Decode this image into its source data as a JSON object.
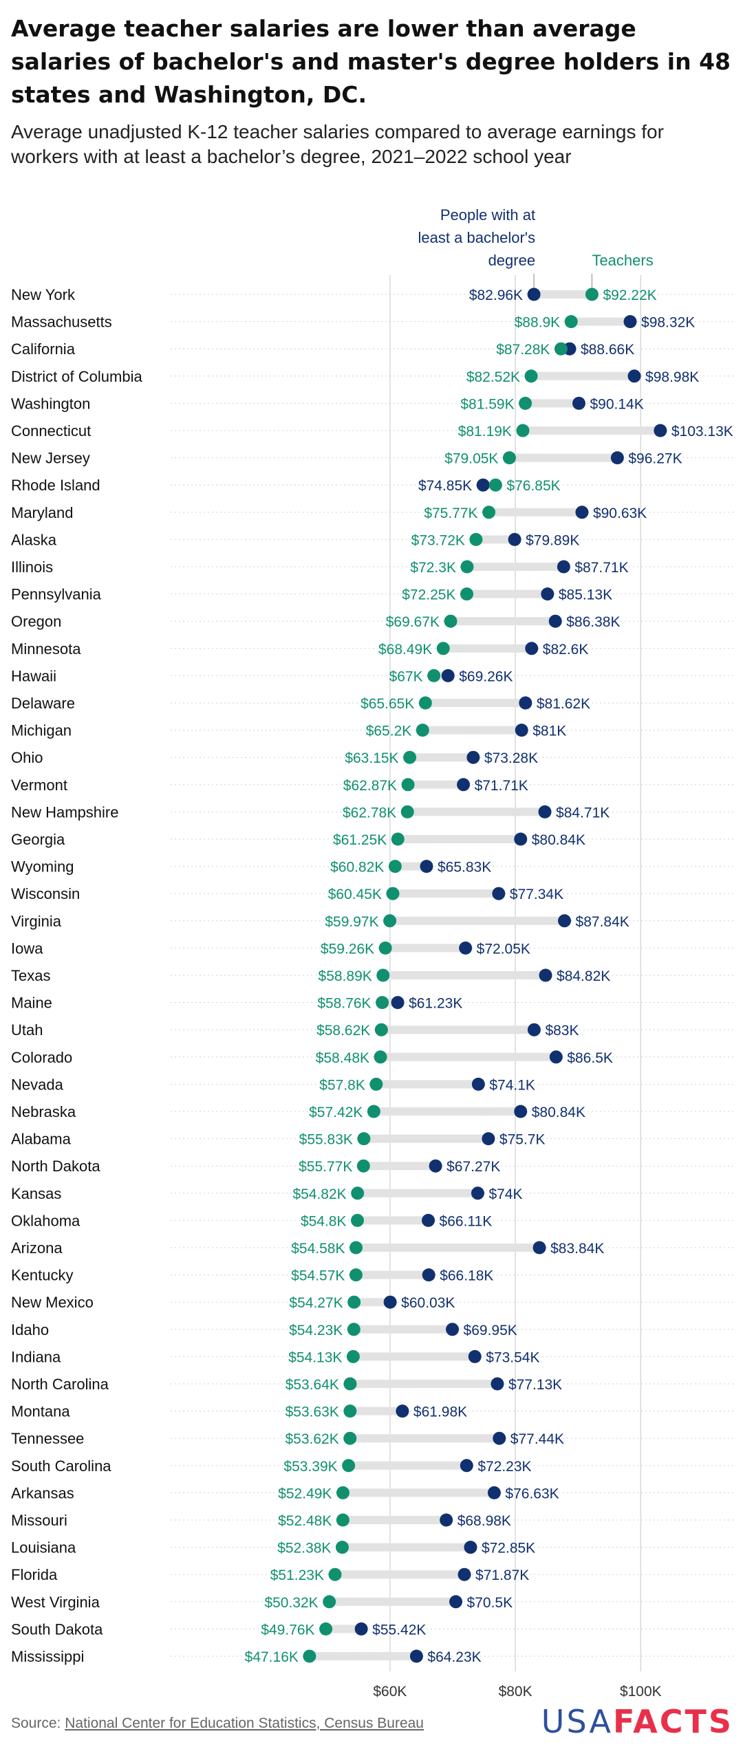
{
  "title": "Average teacher salaries are lower than average salaries of bachelor's and master's degree holders in 48 states and Washington, DC.",
  "subtitle": "Average unadjusted K-12 teacher salaries compared to average earnings for workers with at least a bachelor’s degree, 2021–2022 school year",
  "source": {
    "prefix": "Source: ",
    "link_text": "National Center for Education Statistics, Census Bureau"
  },
  "logo": {
    "usa": "USA",
    "facts": "FACTS"
  },
  "colors": {
    "teachers": "#10906f",
    "bachelors": "#11306f",
    "range": "#e2e2e2",
    "grid": "#d8d8d8"
  },
  "chart_data": {
    "type": "dot",
    "x_unit": "USD",
    "xlim": [
      25000,
      115000
    ],
    "x_ticks": [
      60000,
      80000,
      100000
    ],
    "x_tick_labels": [
      "$60K",
      "$80K",
      "$100K"
    ],
    "series": [
      {
        "name": "People with at least a bachelor's degree",
        "key": "degree"
      },
      {
        "name": "Teachers",
        "key": "teachers"
      }
    ],
    "rows": [
      {
        "state": "New York",
        "teachers": 92220,
        "degree": 82960,
        "teachers_label": "$92.22K",
        "degree_label": "$82.96K"
      },
      {
        "state": "Massachusetts",
        "teachers": 88900,
        "degree": 98320,
        "teachers_label": "$88.9K",
        "degree_label": "$98.32K"
      },
      {
        "state": "California",
        "teachers": 87280,
        "degree": 88660,
        "teachers_label": "$87.28K",
        "degree_label": "$88.66K"
      },
      {
        "state": "District of Columbia",
        "teachers": 82520,
        "degree": 98980,
        "teachers_label": "$82.52K",
        "degree_label": "$98.98K"
      },
      {
        "state": "Washington",
        "teachers": 81590,
        "degree": 90140,
        "teachers_label": "$81.59K",
        "degree_label": "$90.14K"
      },
      {
        "state": "Connecticut",
        "teachers": 81190,
        "degree": 103130,
        "teachers_label": "$81.19K",
        "degree_label": "$103.13K"
      },
      {
        "state": "New Jersey",
        "teachers": 79050,
        "degree": 96270,
        "teachers_label": "$79.05K",
        "degree_label": "$96.27K"
      },
      {
        "state": "Rhode Island",
        "teachers": 76850,
        "degree": 74850,
        "teachers_label": "$76.85K",
        "degree_label": "$74.85K"
      },
      {
        "state": "Maryland",
        "teachers": 75770,
        "degree": 90630,
        "teachers_label": "$75.77K",
        "degree_label": "$90.63K"
      },
      {
        "state": "Alaska",
        "teachers": 73720,
        "degree": 79890,
        "teachers_label": "$73.72K",
        "degree_label": "$79.89K"
      },
      {
        "state": "Illinois",
        "teachers": 72300,
        "degree": 87710,
        "teachers_label": "$72.3K",
        "degree_label": "$87.71K"
      },
      {
        "state": "Pennsylvania",
        "teachers": 72250,
        "degree": 85130,
        "teachers_label": "$72.25K",
        "degree_label": "$85.13K"
      },
      {
        "state": "Oregon",
        "teachers": 69670,
        "degree": 86380,
        "teachers_label": "$69.67K",
        "degree_label": "$86.38K"
      },
      {
        "state": "Minnesota",
        "teachers": 68490,
        "degree": 82600,
        "teachers_label": "$68.49K",
        "degree_label": "$82.6K"
      },
      {
        "state": "Hawaii",
        "teachers": 67000,
        "degree": 69260,
        "teachers_label": "$67K",
        "degree_label": "$69.26K"
      },
      {
        "state": "Delaware",
        "teachers": 65650,
        "degree": 81620,
        "teachers_label": "$65.65K",
        "degree_label": "$81.62K"
      },
      {
        "state": "Michigan",
        "teachers": 65200,
        "degree": 81000,
        "teachers_label": "$65.2K",
        "degree_label": "$81K"
      },
      {
        "state": "Ohio",
        "teachers": 63150,
        "degree": 73280,
        "teachers_label": "$63.15K",
        "degree_label": "$73.28K"
      },
      {
        "state": "Vermont",
        "teachers": 62870,
        "degree": 71710,
        "teachers_label": "$62.87K",
        "degree_label": "$71.71K"
      },
      {
        "state": "New Hampshire",
        "teachers": 62780,
        "degree": 84710,
        "teachers_label": "$62.78K",
        "degree_label": "$84.71K"
      },
      {
        "state": "Georgia",
        "teachers": 61250,
        "degree": 80840,
        "teachers_label": "$61.25K",
        "degree_label": "$80.84K"
      },
      {
        "state": "Wyoming",
        "teachers": 60820,
        "degree": 65830,
        "teachers_label": "$60.82K",
        "degree_label": "$65.83K"
      },
      {
        "state": "Wisconsin",
        "teachers": 60450,
        "degree": 77340,
        "teachers_label": "$60.45K",
        "degree_label": "$77.34K"
      },
      {
        "state": "Virginia",
        "teachers": 59970,
        "degree": 87840,
        "teachers_label": "$59.97K",
        "degree_label": "$87.84K"
      },
      {
        "state": "Iowa",
        "teachers": 59260,
        "degree": 72050,
        "teachers_label": "$59.26K",
        "degree_label": "$72.05K"
      },
      {
        "state": "Texas",
        "teachers": 58890,
        "degree": 84820,
        "teachers_label": "$58.89K",
        "degree_label": "$84.82K"
      },
      {
        "state": "Maine",
        "teachers": 58760,
        "degree": 61230,
        "teachers_label": "$58.76K",
        "degree_label": "$61.23K"
      },
      {
        "state": "Utah",
        "teachers": 58620,
        "degree": 83000,
        "teachers_label": "$58.62K",
        "degree_label": "$83K"
      },
      {
        "state": "Colorado",
        "teachers": 58480,
        "degree": 86500,
        "teachers_label": "$58.48K",
        "degree_label": "$86.5K"
      },
      {
        "state": "Nevada",
        "teachers": 57800,
        "degree": 74100,
        "teachers_label": "$57.8K",
        "degree_label": "$74.1K"
      },
      {
        "state": "Nebraska",
        "teachers": 57420,
        "degree": 80840,
        "teachers_label": "$57.42K",
        "degree_label": "$80.84K"
      },
      {
        "state": "Alabama",
        "teachers": 55830,
        "degree": 75700,
        "teachers_label": "$55.83K",
        "degree_label": "$75.7K"
      },
      {
        "state": "North Dakota",
        "teachers": 55770,
        "degree": 67270,
        "teachers_label": "$55.77K",
        "degree_label": "$67.27K"
      },
      {
        "state": "Kansas",
        "teachers": 54820,
        "degree": 74000,
        "teachers_label": "$54.82K",
        "degree_label": "$74K"
      },
      {
        "state": "Oklahoma",
        "teachers": 54800,
        "degree": 66110,
        "teachers_label": "$54.8K",
        "degree_label": "$66.11K"
      },
      {
        "state": "Arizona",
        "teachers": 54580,
        "degree": 83840,
        "teachers_label": "$54.58K",
        "degree_label": "$83.84K"
      },
      {
        "state": "Kentucky",
        "teachers": 54570,
        "degree": 66180,
        "teachers_label": "$54.57K",
        "degree_label": "$66.18K"
      },
      {
        "state": "New Mexico",
        "teachers": 54270,
        "degree": 60030,
        "teachers_label": "$54.27K",
        "degree_label": "$60.03K"
      },
      {
        "state": "Idaho",
        "teachers": 54230,
        "degree": 69950,
        "teachers_label": "$54.23K",
        "degree_label": "$69.95K"
      },
      {
        "state": "Indiana",
        "teachers": 54130,
        "degree": 73540,
        "teachers_label": "$54.13K",
        "degree_label": "$73.54K"
      },
      {
        "state": "North Carolina",
        "teachers": 53640,
        "degree": 77130,
        "teachers_label": "$53.64K",
        "degree_label": "$77.13K"
      },
      {
        "state": "Montana",
        "teachers": 53630,
        "degree": 61980,
        "teachers_label": "$53.63K",
        "degree_label": "$61.98K"
      },
      {
        "state": "Tennessee",
        "teachers": 53620,
        "degree": 77440,
        "teachers_label": "$53.62K",
        "degree_label": "$77.44K"
      },
      {
        "state": "South Carolina",
        "teachers": 53390,
        "degree": 72230,
        "teachers_label": "$53.39K",
        "degree_label": "$72.23K"
      },
      {
        "state": "Arkansas",
        "teachers": 52490,
        "degree": 76630,
        "teachers_label": "$52.49K",
        "degree_label": "$76.63K"
      },
      {
        "state": "Missouri",
        "teachers": 52480,
        "degree": 68980,
        "teachers_label": "$52.48K",
        "degree_label": "$68.98K"
      },
      {
        "state": "Louisiana",
        "teachers": 52380,
        "degree": 72850,
        "teachers_label": "$52.38K",
        "degree_label": "$72.85K"
      },
      {
        "state": "Florida",
        "teachers": 51230,
        "degree": 71870,
        "teachers_label": "$51.23K",
        "degree_label": "$71.87K"
      },
      {
        "state": "West Virginia",
        "teachers": 50320,
        "degree": 70500,
        "teachers_label": "$50.32K",
        "degree_label": "$70.5K"
      },
      {
        "state": "South Dakota",
        "teachers": 49760,
        "degree": 55420,
        "teachers_label": "$49.76K",
        "degree_label": "$55.42K"
      },
      {
        "state": "Mississippi",
        "teachers": 47160,
        "degree": 64230,
        "teachers_label": "$47.16K",
        "degree_label": "$64.23K"
      }
    ]
  }
}
